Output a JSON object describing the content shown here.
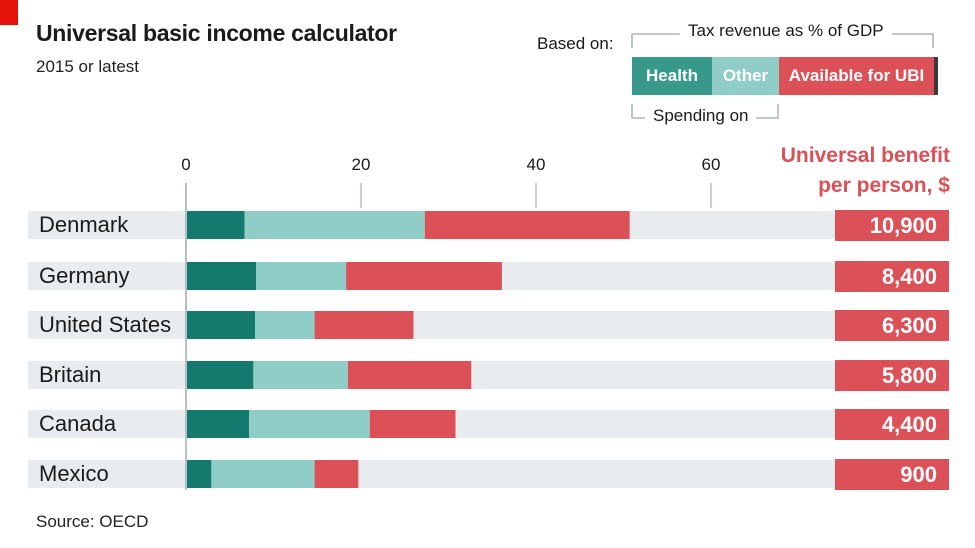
{
  "header": {
    "title": "Universal basic income calculator",
    "subtitle": "2015 or latest"
  },
  "legend": {
    "based_on": "Based on:",
    "top_bracket_label": "Tax revenue as % of GDP",
    "bottom_bracket_label": "Spending on",
    "keys": [
      {
        "label": "Health",
        "color": "#38998a"
      },
      {
        "label": "Other",
        "color": "#8fcdc6"
      },
      {
        "label": "Available for UBI",
        "color": "#dc5057"
      }
    ]
  },
  "benefit_header": {
    "line1": "Universal benefit",
    "line2": "per person, $"
  },
  "footer": {
    "source": "Source: OECD"
  },
  "chart_data": {
    "type": "bar",
    "orientation": "horizontal",
    "stacked": true,
    "xlim": [
      0,
      75
    ],
    "xticks": [
      "0",
      "20",
      "40",
      "60"
    ],
    "categories": [
      "Denmark",
      "Germany",
      "United States",
      "Britain",
      "Canada",
      "Mexico"
    ],
    "series": [
      {
        "name": "Health",
        "color": "#157a6e",
        "values": [
          6.7,
          8.0,
          7.9,
          7.7,
          7.2,
          2.9
        ]
      },
      {
        "name": "Other",
        "color": "#8fcdc6",
        "values": [
          20.6,
          10.3,
          6.8,
          10.8,
          13.8,
          11.8
        ]
      },
      {
        "name": "Available for UBI",
        "color": "#dc5057",
        "values": [
          23.4,
          17.8,
          11.3,
          14.1,
          9.8,
          5.0
        ]
      }
    ],
    "benefit_per_person": [
      "10,900",
      "8,400",
      "6,300",
      "5,800",
      "4,400",
      "900"
    ],
    "colors": {
      "track": "#e8ecef",
      "axis": "#c9cfd4",
      "zero_line": "#b8bfc5"
    }
  }
}
